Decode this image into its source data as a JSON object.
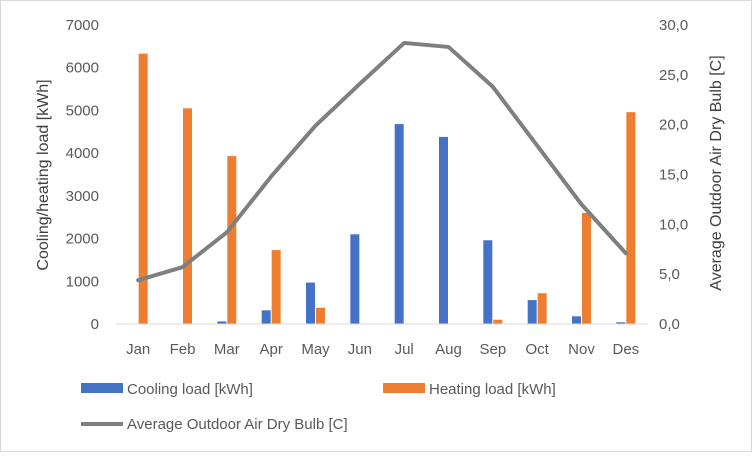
{
  "chart_data": {
    "type": "bar",
    "categories": [
      "Jan",
      "Feb",
      "Mar",
      "Apr",
      "May",
      "Jun",
      "Jul",
      "Aug",
      "Sep",
      "Oct",
      "Nov",
      "Des"
    ],
    "series": [
      {
        "name": "Cooling load [kWh]",
        "type": "bar",
        "axis": "left",
        "color": "#4472c4",
        "values": [
          0,
          0,
          60,
          320,
          970,
          2100,
          4680,
          4380,
          1960,
          560,
          180,
          40
        ]
      },
      {
        "name": "Heating load [kWh]",
        "type": "bar",
        "axis": "left",
        "color": "#ed7d31",
        "values": [
          6330,
          5050,
          3930,
          1730,
          380,
          0,
          0,
          0,
          100,
          720,
          2600,
          4960
        ]
      },
      {
        "name": "Average Outdoor Air Dry Bulb [C]",
        "type": "line",
        "axis": "right",
        "color": "#7f7f7f",
        "values": [
          4.4,
          5.7,
          9.2,
          14.8,
          19.9,
          24.1,
          28.2,
          27.8,
          23.8,
          17.9,
          12.0,
          7.1
        ]
      }
    ],
    "ylabel": "Cooling/heating load [kWh]",
    "y2label": "Average Outdoor Air Dry Bulb [C]",
    "ylim": [
      0,
      7000
    ],
    "yticks": [
      "0",
      "1000",
      "2000",
      "3000",
      "4000",
      "5000",
      "6000",
      "7000"
    ],
    "y2lim": [
      0,
      30
    ],
    "y2ticks": [
      "0,0",
      "5,0",
      "10,0",
      "15,0",
      "20,0",
      "25,0",
      "30,0"
    ],
    "grid": false,
    "legend_position": "bottom"
  }
}
